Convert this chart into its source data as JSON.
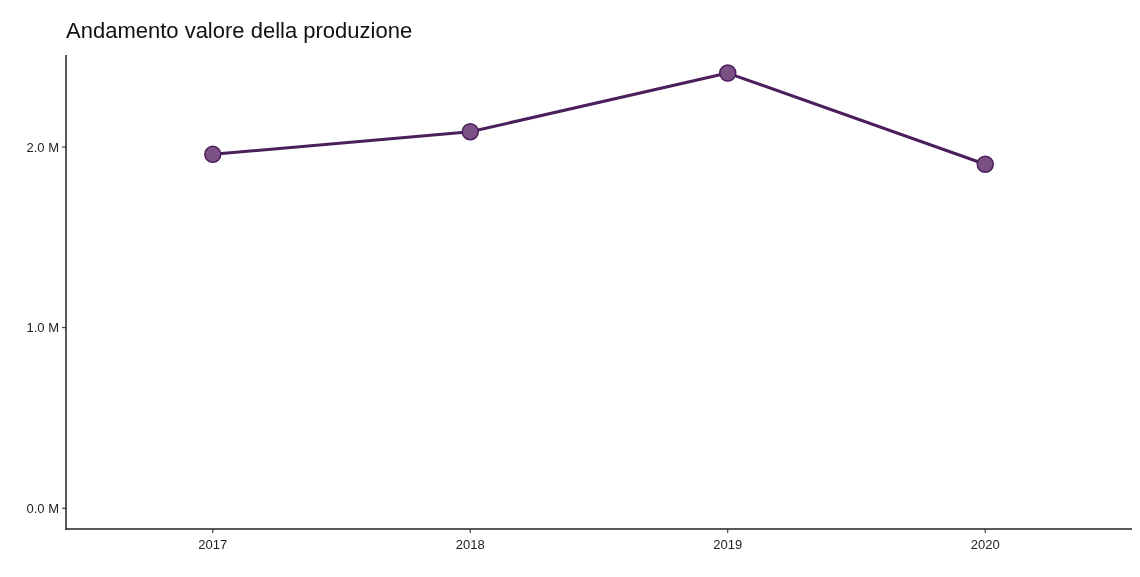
{
  "chart_data": {
    "type": "line",
    "title": "Andamento valore della produzione",
    "categories": [
      "2017",
      "2018",
      "2019",
      "2020"
    ],
    "series": [
      {
        "color": "#4b1f5c",
        "values": [
          1960000,
          2085000,
          2410000,
          1905000
        ]
      }
    ],
    "ylim": [
      -115000,
      2510000
    ],
    "yticks": [
      {
        "value": 0,
        "label": "0.0 M"
      },
      {
        "value": 1000000,
        "label": "1.0 M"
      },
      {
        "value": 2000000,
        "label": "2.0 M"
      }
    ],
    "marker": "circle",
    "line_style": "solid",
    "grid": false
  }
}
